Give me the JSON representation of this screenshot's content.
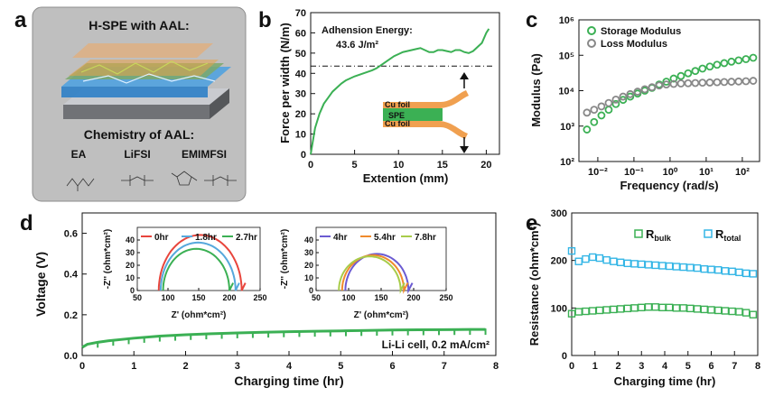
{
  "panel_a": {
    "letter": "a",
    "title": "H-SPE with AAL:",
    "chem_title": "Chemistry of AAL:",
    "chem_names": [
      "EA",
      "LiFSI",
      "EMIMFSI"
    ]
  },
  "chart_data": [
    {
      "panel": "b",
      "type": "line",
      "xlabel": "Extention (mm)",
      "ylabel": "Force per width (N/m)",
      "xlim": [
        0,
        21.5
      ],
      "ylim": [
        0,
        70
      ],
      "xticks": [
        0,
        5,
        10,
        15,
        20
      ],
      "yticks": [
        0,
        10,
        20,
        30,
        40,
        50,
        60,
        70
      ],
      "annotation": "Adhension Energy:",
      "annotation_value": "43.6 J/m²",
      "reference_line": 43.6,
      "inset_labels": [
        "Cu foil",
        "SPE",
        "Cu foil"
      ],
      "series": [
        {
          "color": "#3bb054",
          "x": [
            0,
            0.5,
            1,
            1.5,
            2,
            2.5,
            3,
            3.5,
            4,
            5,
            6,
            7,
            7.5,
            8,
            8.5,
            9,
            9.5,
            10,
            10.5,
            11,
            11.5,
            12,
            12.5,
            13,
            13.5,
            14,
            14.5,
            15,
            15.5,
            16,
            16.5,
            17,
            17.5,
            18,
            18.5,
            19,
            19.5,
            20,
            20.3
          ],
          "y": [
            0,
            13,
            20,
            25,
            28,
            31,
            33,
            35,
            36.5,
            38.5,
            40,
            41.5,
            42.5,
            44,
            45.5,
            47,
            48.5,
            49.5,
            50.5,
            51,
            51.5,
            52,
            52.5,
            51.5,
            50.5,
            50.5,
            51.5,
            51.5,
            51,
            50.5,
            51.5,
            51.5,
            50.5,
            50,
            51,
            53,
            55,
            60,
            62
          ]
        }
      ]
    },
    {
      "panel": "c",
      "type": "scatter",
      "xlabel": "Frequency (rad/s)",
      "ylabel": "Modulus (Pa)",
      "xscale": "log",
      "yscale": "log",
      "xlim": [
        0.003,
        300
      ],
      "ylim": [
        100,
        1000000
      ],
      "xticks": [
        "10⁻²",
        "10⁻¹",
        "10⁰",
        "10¹",
        "10²"
      ],
      "yticks": [
        "10²",
        "10³",
        "10⁴",
        "10⁵",
        "10⁶"
      ],
      "legend_position": "top-left",
      "series": [
        {
          "name": "Storage Modulus",
          "color": "#3bb054",
          "x": [
            0.005,
            0.0079,
            0.0126,
            0.02,
            0.0316,
            0.05,
            0.079,
            0.126,
            0.2,
            0.316,
            0.5,
            0.79,
            1.26,
            2,
            3.16,
            5,
            7.9,
            12.6,
            20,
            31.6,
            50,
            79,
            126,
            200
          ],
          "y": [
            800,
            1300,
            2000,
            2900,
            4200,
            5500,
            6800,
            8300,
            10000,
            12000,
            15000,
            18000,
            22000,
            26000,
            31000,
            36000,
            42000,
            48000,
            54000,
            60000,
            66000,
            72000,
            78000,
            85000
          ]
        },
        {
          "name": "Loss Modulus",
          "color": "#888888",
          "x": [
            0.005,
            0.0079,
            0.0126,
            0.02,
            0.0316,
            0.05,
            0.079,
            0.126,
            0.2,
            0.316,
            0.5,
            0.79,
            1.26,
            2,
            3.16,
            5,
            7.9,
            12.6,
            20,
            31.6,
            50,
            79,
            126,
            200
          ],
          "y": [
            2400,
            2900,
            3600,
            4500,
            5600,
            6800,
            8000,
            9400,
            11000,
            12500,
            14000,
            15000,
            15500,
            16000,
            16200,
            16500,
            16800,
            17000,
            17300,
            17600,
            17900,
            18200,
            18500,
            19000
          ]
        }
      ]
    },
    {
      "panel": "d",
      "type": "line",
      "xlabel": "Charging time (hr)",
      "ylabel": "Voltage (V)",
      "xlim": [
        0,
        8
      ],
      "ylim": [
        0,
        0.7
      ],
      "xticks": [
        0,
        1,
        2,
        3,
        4,
        5,
        6,
        7,
        8
      ],
      "yticks": [
        "0.0",
        "0.2",
        "0.4",
        "0.6"
      ],
      "annotation": "Li-Li cell, 0.2 mA/cm²",
      "series": [
        {
          "color": "#3bb054",
          "x": [
            0,
            0.1,
            0.3,
            0.5,
            1,
            1.5,
            2,
            2.5,
            3,
            3.5,
            4,
            4.5,
            5,
            5.5,
            6,
            6.5,
            7,
            7.5,
            7.8
          ],
          "y": [
            0.04,
            0.055,
            0.065,
            0.072,
            0.085,
            0.095,
            0.102,
            0.107,
            0.111,
            0.114,
            0.117,
            0.119,
            0.121,
            0.123,
            0.125,
            0.126,
            0.127,
            0.128,
            0.128
          ]
        }
      ]
    },
    {
      "panel": "d-inset1",
      "type": "line",
      "xlabel": "Z' (ohm*cm²)",
      "ylabel": "-Z'' (ohm*cm²)",
      "xlim": [
        50,
        250
      ],
      "ylim": [
        0,
        50
      ],
      "xticks": [
        50,
        100,
        150,
        200,
        250
      ],
      "yticks": [
        0,
        10,
        20,
        30,
        40
      ],
      "series": [
        {
          "name": "0hr",
          "color": "#e8453c",
          "x_start": 85,
          "x_end": 220,
          "peak": 44
        },
        {
          "name": "1.8hr",
          "color": "#56a8dc",
          "x_start": 88,
          "x_end": 210,
          "peak": 38
        },
        {
          "name": "2.7hr",
          "color": "#3bb054",
          "x_start": 92,
          "x_end": 200,
          "peak": 33
        }
      ]
    },
    {
      "panel": "d-inset2",
      "type": "line",
      "xlabel": "Z' (ohm*cm²)",
      "ylabel": "-Z'' (ohm*cm²)",
      "xlim": [
        50,
        250
      ],
      "ylim": [
        0,
        50
      ],
      "xticks": [
        50,
        100,
        150,
        200,
        250
      ],
      "yticks": [
        0,
        10,
        20,
        30,
        40
      ],
      "series": [
        {
          "name": "4hr",
          "color": "#6b5bd2",
          "x_start": 95,
          "x_end": 192,
          "peak": 29
        },
        {
          "name": "5.4hr",
          "color": "#f08a2c",
          "x_start": 90,
          "x_end": 185,
          "peak": 28
        },
        {
          "name": "7.8hr",
          "color": "#a8cc4a",
          "x_start": 85,
          "x_end": 180,
          "peak": 27
        }
      ]
    },
    {
      "panel": "e",
      "type": "scatter",
      "xlabel": "Charging time (hr)",
      "ylabel": "Resistance (ohm*cm²)",
      "xlim": [
        0,
        8
      ],
      "ylim": [
        0,
        300
      ],
      "xticks": [
        0,
        1,
        2,
        3,
        4,
        5,
        6,
        7,
        8
      ],
      "yticks": [
        0,
        100,
        200,
        300
      ],
      "legend_position": "top-right",
      "series": [
        {
          "name": "R",
          "sub": "bulk",
          "color": "#3bb054",
          "x": [
            0,
            0.3,
            0.6,
            0.9,
            1.2,
            1.5,
            1.8,
            2.1,
            2.4,
            2.7,
            3.0,
            3.3,
            3.6,
            3.9,
            4.2,
            4.5,
            4.8,
            5.1,
            5.4,
            5.7,
            6.0,
            6.3,
            6.6,
            6.9,
            7.2,
            7.5,
            7.8
          ],
          "y": [
            88,
            92,
            93,
            94,
            95,
            96,
            97,
            98,
            99,
            100,
            101,
            102,
            102,
            101,
            101,
            100,
            100,
            99,
            98,
            97,
            96,
            95,
            94,
            93,
            92,
            90,
            86
          ]
        },
        {
          "name": "R",
          "sub": "total",
          "color": "#35b6e6",
          "x": [
            0,
            0.3,
            0.6,
            0.9,
            1.2,
            1.5,
            1.8,
            2.1,
            2.4,
            2.7,
            3.0,
            3.3,
            3.6,
            3.9,
            4.2,
            4.5,
            4.8,
            5.1,
            5.4,
            5.7,
            6.0,
            6.3,
            6.6,
            6.9,
            7.2,
            7.5,
            7.8
          ],
          "y": [
            220,
            198,
            203,
            207,
            205,
            201,
            198,
            196,
            194,
            193,
            192,
            191,
            190,
            189,
            188,
            187,
            186,
            185,
            184,
            182,
            181,
            180,
            178,
            177,
            175,
            173,
            172
          ]
        }
      ]
    }
  ],
  "letters": {
    "b": "b",
    "c": "c",
    "d": "d",
    "e": "e"
  }
}
